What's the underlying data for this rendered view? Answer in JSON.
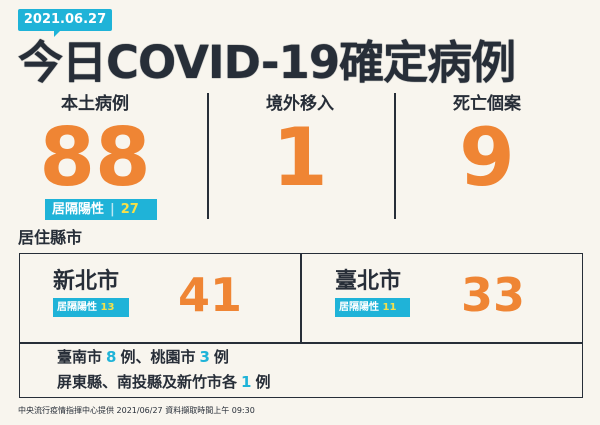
{
  "date": "2021.06.27",
  "title": "今日COVID-19確定病例",
  "stats": [
    {
      "label": "本土病例",
      "value": "88"
    },
    {
      "label": "境外移入",
      "value": "1"
    },
    {
      "label": "死亡個案",
      "value": "9"
    }
  ],
  "home_isolation": {
    "label": "居隔陽性",
    "value": "27"
  },
  "city_heading": "居住縣市",
  "cities": [
    {
      "name": "新北市",
      "isolation_label": "居隔陽性",
      "isolation_value": "13",
      "value": "41"
    },
    {
      "name": "臺北市",
      "isolation_label": "居隔陽性",
      "isolation_value": "11",
      "value": "33"
    }
  ],
  "others": {
    "line1": {
      "a": "臺南市",
      "a_count": "8",
      "a_unit": "例、桃園市",
      "b_count": "3",
      "b_unit": "例"
    },
    "line2": {
      "a": "屏東縣、南投縣及新竹市各",
      "a_count": "1",
      "a_unit": "例"
    }
  },
  "footer": "中央流行疫情指揮中心提供 2021/06/27 資料擷取時間上午 09:30",
  "colors": {
    "background": "#f8f5ee",
    "text": "#272e38",
    "accent_orange": "#ef8534",
    "accent_cyan": "#1fb3d8",
    "accent_yellow": "#f5e04a"
  }
}
